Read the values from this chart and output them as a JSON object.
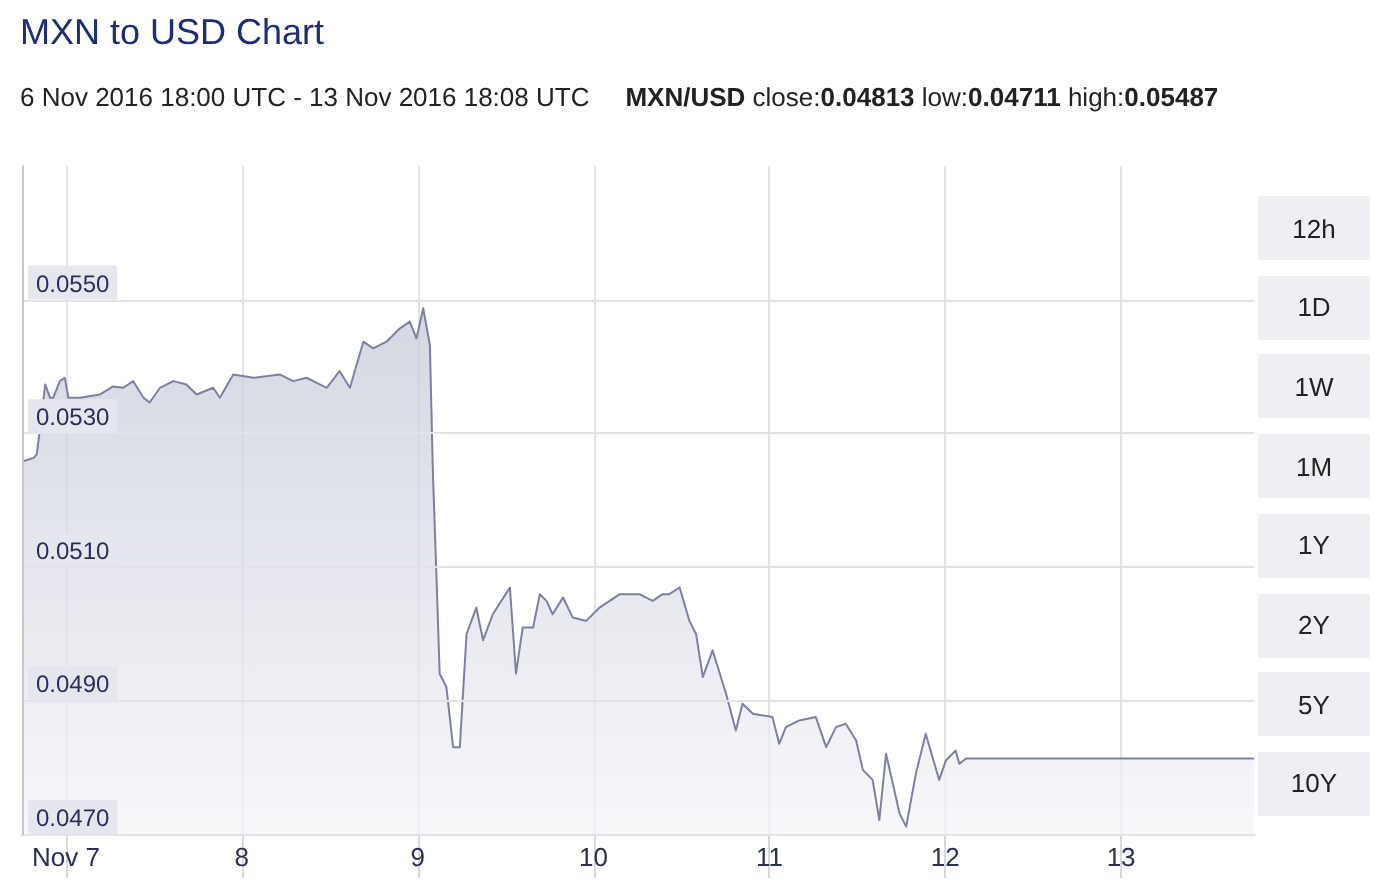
{
  "chart_data": {
    "type": "area",
    "title": "MXN to USD Chart",
    "subtitle": "6 Nov 2016 18:00 UTC - 13 Nov 2016 18:08 UTC",
    "annotations": [
      "MXN/USD close:0.04813 low:0.04711 high:0.05487",
      "12h",
      "1D",
      "1W",
      "1M",
      "1Y",
      "2Y",
      "5Y",
      "10Y"
    ],
    "color": "#7d819f",
    "x": [
      "2016-11-06T18:10",
      "2016-11-06T19:35",
      "2016-11-06T20:00",
      "2016-11-06T20:25",
      "2016-11-06T21:10",
      "2016-11-06T21:50",
      "2016-11-06T22:15",
      "2016-11-06T23:10",
      "2016-11-06T23:50",
      "2016-11-07T00:20",
      "2016-11-07T01:55",
      "2016-11-07T04:40",
      "2016-11-07T06:25",
      "2016-11-07T07:50",
      "2016-11-07T09:10",
      "2016-11-07T10:35",
      "2016-11-07T11:25",
      "2016-11-07T12:50",
      "2016-11-07T14:40",
      "2016-11-07T16:25",
      "2016-11-07T17:50",
      "2016-11-07T20:05",
      "2016-11-07T21:00",
      "2016-11-07T22:50",
      "2016-11-08T01:35",
      "2016-11-08T05:10",
      "2016-11-08T07:00",
      "2016-11-08T08:50",
      "2016-11-08T11:35",
      "2016-11-08T13:20",
      "2016-11-08T14:45",
      "2016-11-08T16:35",
      "2016-11-08T17:55",
      "2016-11-08T19:45",
      "2016-11-08T21:35",
      "2016-11-08T22:55",
      "2016-11-08T23:50",
      "2016-11-09T00:45",
      "2016-11-09T01:40",
      "2016-11-09T02:05",
      "2016-11-09T02:35",
      "2016-11-09T03:00",
      "2016-11-09T03:55",
      "2016-11-09T04:50",
      "2016-11-09T05:45",
      "2016-11-09T06:40",
      "2016-11-09T08:00",
      "2016-11-09T08:55",
      "2016-11-09T10:15",
      "2016-11-09T12:35",
      "2016-11-09T13:25",
      "2016-11-09T14:20",
      "2016-11-09T15:45",
      "2016-11-09T16:40",
      "2016-11-09T17:35",
      "2016-11-09T18:25",
      "2016-11-09T19:50",
      "2016-11-09T21:10",
      "2016-11-09T23:00",
      "2016-11-10T00:50",
      "2016-11-10T03:35",
      "2016-11-10T06:15",
      "2016-11-10T08:05",
      "2016-11-10T09:25",
      "2016-11-10T10:20",
      "2016-11-10T11:45",
      "2016-11-10T13:05",
      "2016-11-10T14:00",
      "2016-11-10T14:55",
      "2016-11-10T16:15",
      "2016-11-10T18:05",
      "2016-11-10T19:25",
      "2016-11-10T20:20",
      "2016-11-10T21:45",
      "2016-11-11T00:25",
      "2016-11-11T01:20",
      "2016-11-11T02:15",
      "2016-11-11T04:05",
      "2016-11-11T06:20",
      "2016-11-11T07:45",
      "2016-11-11T09:05",
      "2016-11-11T10:25",
      "2016-11-11T11:50",
      "2016-11-11T12:45",
      "2016-11-11T14:05",
      "2016-11-11T15:00",
      "2016-11-11T15:55",
      "2016-11-11T16:50",
      "2016-11-11T17:45",
      "2016-11-11T18:40",
      "2016-11-11T20:00",
      "2016-11-11T21:20",
      "2016-11-11T23:10",
      "2016-11-12T00:05",
      "2016-11-12T01:25",
      "2016-11-12T01:55",
      "2016-11-12T02:50",
      "2016-11-13T18:08"
    ],
    "values": [
      0.05258,
      0.05263,
      0.05268,
      0.05303,
      0.05373,
      0.05353,
      0.05353,
      0.05378,
      0.05383,
      0.05353,
      0.05353,
      0.05358,
      0.0537,
      0.05368,
      0.05378,
      0.05353,
      0.05346,
      0.05368,
      0.05378,
      0.05373,
      0.05358,
      0.05368,
      0.05353,
      0.05388,
      0.05383,
      0.05388,
      0.05378,
      0.05383,
      0.05368,
      0.05393,
      0.05368,
      0.05437,
      0.05427,
      0.05437,
      0.05457,
      0.05467,
      0.05442,
      0.05487,
      0.05432,
      0.05238,
      0.05079,
      0.0494,
      0.0492,
      0.0483,
      0.0483,
      0.04999,
      0.05039,
      0.0499,
      0.05029,
      0.05069,
      0.0494,
      0.05009,
      0.05009,
      0.05059,
      0.05049,
      0.05029,
      0.05054,
      0.05024,
      0.05019,
      0.05039,
      0.05059,
      0.05059,
      0.05049,
      0.05059,
      0.05059,
      0.05069,
      0.05019,
      0.04999,
      0.04935,
      0.04975,
      0.0491,
      0.04855,
      0.04895,
      0.0488,
      0.04875,
      0.04835,
      0.0486,
      0.0487,
      0.04875,
      0.0483,
      0.0486,
      0.04865,
      0.0484,
      0.04796,
      0.04781,
      0.04721,
      0.0482,
      0.04776,
      0.04731,
      0.04711,
      0.04791,
      0.0485,
      0.04781,
      0.0481,
      0.04825,
      0.04805,
      0.04813,
      0.04813
    ],
    "xlim": [
      "2016-11-06T18:00",
      "2016-11-13T18:08"
    ],
    "xticks": [
      {
        "value": "2016-11-07",
        "label": "Nov 7"
      },
      {
        "value": "2016-11-08",
        "label": "8"
      },
      {
        "value": "2016-11-09",
        "label": "9"
      },
      {
        "value": "2016-11-10",
        "label": "10"
      },
      {
        "value": "2016-11-11",
        "label": "11"
      },
      {
        "value": "2016-11-12",
        "label": "12"
      },
      {
        "value": "2016-11-13",
        "label": "13"
      }
    ],
    "ylim": [
      0.047,
      0.057
    ],
    "yticks": [
      {
        "value": 0.047,
        "label": "0.0470"
      },
      {
        "value": 0.049,
        "label": "0.0490"
      },
      {
        "value": 0.051,
        "label": "0.0510"
      },
      {
        "value": 0.053,
        "label": "0.0530"
      },
      {
        "value": 0.055,
        "label": "0.0550"
      }
    ],
    "grid": true
  }
}
